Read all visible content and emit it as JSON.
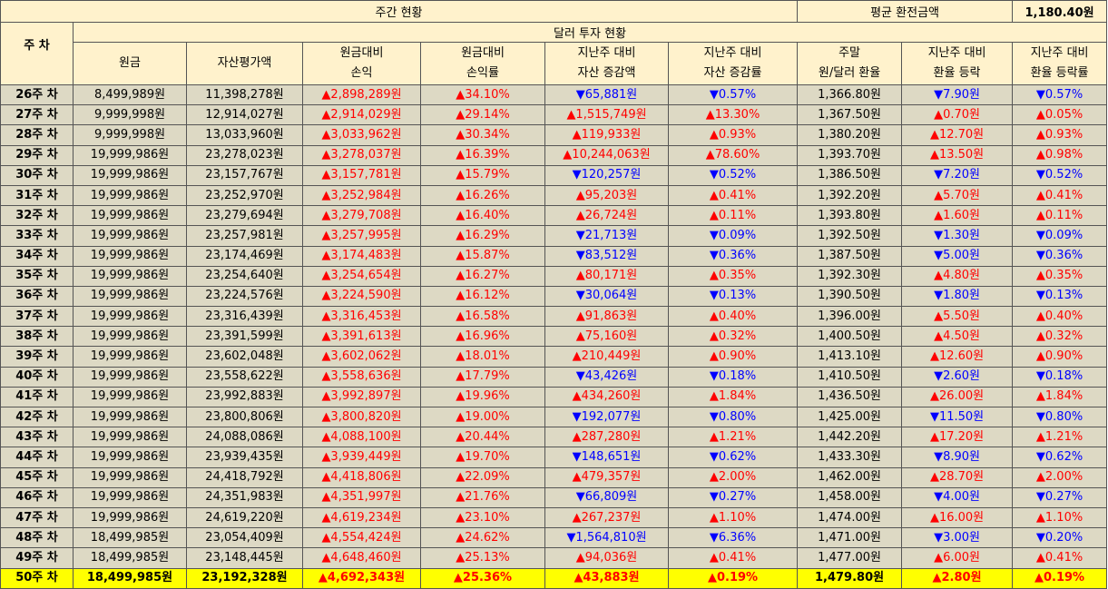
{
  "summary": {
    "title": "주간 현황",
    "avg_label": "평균 환전금액",
    "avg_value": "1,180.40원"
  },
  "table": {
    "week_header": "주 차",
    "group_header": "달러 투자 현황",
    "columns": [
      "원금",
      "자산평가액",
      "원금대비\n손익",
      "원금대비\n손익률",
      "지난주 대비\n자산 증감액",
      "지난주 대비\n자산 증감률",
      "주말\n원/달러 환율",
      "지난주 대비\n환율 등락",
      "지난주 대비\n환율 등락률"
    ],
    "rows": [
      [
        "26주 차",
        "8,499,989원",
        "11,398,278원",
        "▲2,898,289원",
        "▲34.10%",
        "▼65,881원",
        "▼0.57%",
        "1,366.80원",
        "▼7.90원",
        "▼0.57%"
      ],
      [
        "27주 차",
        "9,999,998원",
        "12,914,027원",
        "▲2,914,029원",
        "▲29.14%",
        "▲1,515,749원",
        "▲13.30%",
        "1,367.50원",
        "▲0.70원",
        "▲0.05%"
      ],
      [
        "28주 차",
        "9,999,998원",
        "13,033,960원",
        "▲3,033,962원",
        "▲30.34%",
        "▲119,933원",
        "▲0.93%",
        "1,380.20원",
        "▲12.70원",
        "▲0.93%"
      ],
      [
        "29주 차",
        "19,999,986원",
        "23,278,023원",
        "▲3,278,037원",
        "▲16.39%",
        "▲10,244,063원",
        "▲78.60%",
        "1,393.70원",
        "▲13.50원",
        "▲0.98%"
      ],
      [
        "30주 차",
        "19,999,986원",
        "23,157,767원",
        "▲3,157,781원",
        "▲15.79%",
        "▼120,257원",
        "▼0.52%",
        "1,386.50원",
        "▼7.20원",
        "▼0.52%"
      ],
      [
        "31주 차",
        "19,999,986원",
        "23,252,970원",
        "▲3,252,984원",
        "▲16.26%",
        "▲95,203원",
        "▲0.41%",
        "1,392.20원",
        "▲5.70원",
        "▲0.41%"
      ],
      [
        "32주 차",
        "19,999,986원",
        "23,279,694원",
        "▲3,279,708원",
        "▲16.40%",
        "▲26,724원",
        "▲0.11%",
        "1,393.80원",
        "▲1.60원",
        "▲0.11%"
      ],
      [
        "33주 차",
        "19,999,986원",
        "23,257,981원",
        "▲3,257,995원",
        "▲16.29%",
        "▼21,713원",
        "▼0.09%",
        "1,392.50원",
        "▼1.30원",
        "▼0.09%"
      ],
      [
        "34주 차",
        "19,999,986원",
        "23,174,469원",
        "▲3,174,483원",
        "▲15.87%",
        "▼83,512원",
        "▼0.36%",
        "1,387.50원",
        "▼5.00원",
        "▼0.36%"
      ],
      [
        "35주 차",
        "19,999,986원",
        "23,254,640원",
        "▲3,254,654원",
        "▲16.27%",
        "▲80,171원",
        "▲0.35%",
        "1,392.30원",
        "▲4.80원",
        "▲0.35%"
      ],
      [
        "36주 차",
        "19,999,986원",
        "23,224,576원",
        "▲3,224,590원",
        "▲16.12%",
        "▼30,064원",
        "▼0.13%",
        "1,390.50원",
        "▼1.80원",
        "▼0.13%"
      ],
      [
        "37주 차",
        "19,999,986원",
        "23,316,439원",
        "▲3,316,453원",
        "▲16.58%",
        "▲91,863원",
        "▲0.40%",
        "1,396.00원",
        "▲5.50원",
        "▲0.40%"
      ],
      [
        "38주 차",
        "19,999,986원",
        "23,391,599원",
        "▲3,391,613원",
        "▲16.96%",
        "▲75,160원",
        "▲0.32%",
        "1,400.50원",
        "▲4.50원",
        "▲0.32%"
      ],
      [
        "39주 차",
        "19,999,986원",
        "23,602,048원",
        "▲3,602,062원",
        "▲18.01%",
        "▲210,449원",
        "▲0.90%",
        "1,413.10원",
        "▲12.60원",
        "▲0.90%"
      ],
      [
        "40주 차",
        "19,999,986원",
        "23,558,622원",
        "▲3,558,636원",
        "▲17.79%",
        "▼43,426원",
        "▼0.18%",
        "1,410.50원",
        "▼2.60원",
        "▼0.18%"
      ],
      [
        "41주 차",
        "19,999,986원",
        "23,992,883원",
        "▲3,992,897원",
        "▲19.96%",
        "▲434,260원",
        "▲1.84%",
        "1,436.50원",
        "▲26.00원",
        "▲1.84%"
      ],
      [
        "42주 차",
        "19,999,986원",
        "23,800,806원",
        "▲3,800,820원",
        "▲19.00%",
        "▼192,077원",
        "▼0.80%",
        "1,425.00원",
        "▼11.50원",
        "▼0.80%"
      ],
      [
        "43주 차",
        "19,999,986원",
        "24,088,086원",
        "▲4,088,100원",
        "▲20.44%",
        "▲287,280원",
        "▲1.21%",
        "1,442.20원",
        "▲17.20원",
        "▲1.21%"
      ],
      [
        "44주 차",
        "19,999,986원",
        "23,939,435원",
        "▲3,939,449원",
        "▲19.70%",
        "▼148,651원",
        "▼0.62%",
        "1,433.30원",
        "▼8.90원",
        "▼0.62%"
      ],
      [
        "45주 차",
        "19,999,986원",
        "24,418,792원",
        "▲4,418,806원",
        "▲22.09%",
        "▲479,357원",
        "▲2.00%",
        "1,462.00원",
        "▲28.70원",
        "▲2.00%"
      ],
      [
        "46주 차",
        "19,999,986원",
        "24,351,983원",
        "▲4,351,997원",
        "▲21.76%",
        "▼66,809원",
        "▼0.27%",
        "1,458.00원",
        "▼4.00원",
        "▼0.27%"
      ],
      [
        "47주 차",
        "19,999,986원",
        "24,619,220원",
        "▲4,619,234원",
        "▲23.10%",
        "▲267,237원",
        "▲1.10%",
        "1,474.00원",
        "▲16.00원",
        "▲1.10%"
      ],
      [
        "48주 차",
        "18,499,985원",
        "23,054,409원",
        "▲4,554,424원",
        "▲24.62%",
        "▼1,564,810원",
        "▼6.36%",
        "1,471.00원",
        "▼3.00원",
        "▼0.20%"
      ],
      [
        "49주 차",
        "18,499,985원",
        "23,148,445원",
        "▲4,648,460원",
        "▲25.13%",
        "▲94,036원",
        "▲0.41%",
        "1,477.00원",
        "▲6.00원",
        "▲0.41%"
      ],
      [
        "50주 차",
        "18,499,985원",
        "23,192,328원",
        "▲4,692,343원",
        "▲25.36%",
        "▲43,883원",
        "▲0.19%",
        "1,479.80원",
        "▲2.80원",
        "▲0.19%"
      ]
    ]
  }
}
